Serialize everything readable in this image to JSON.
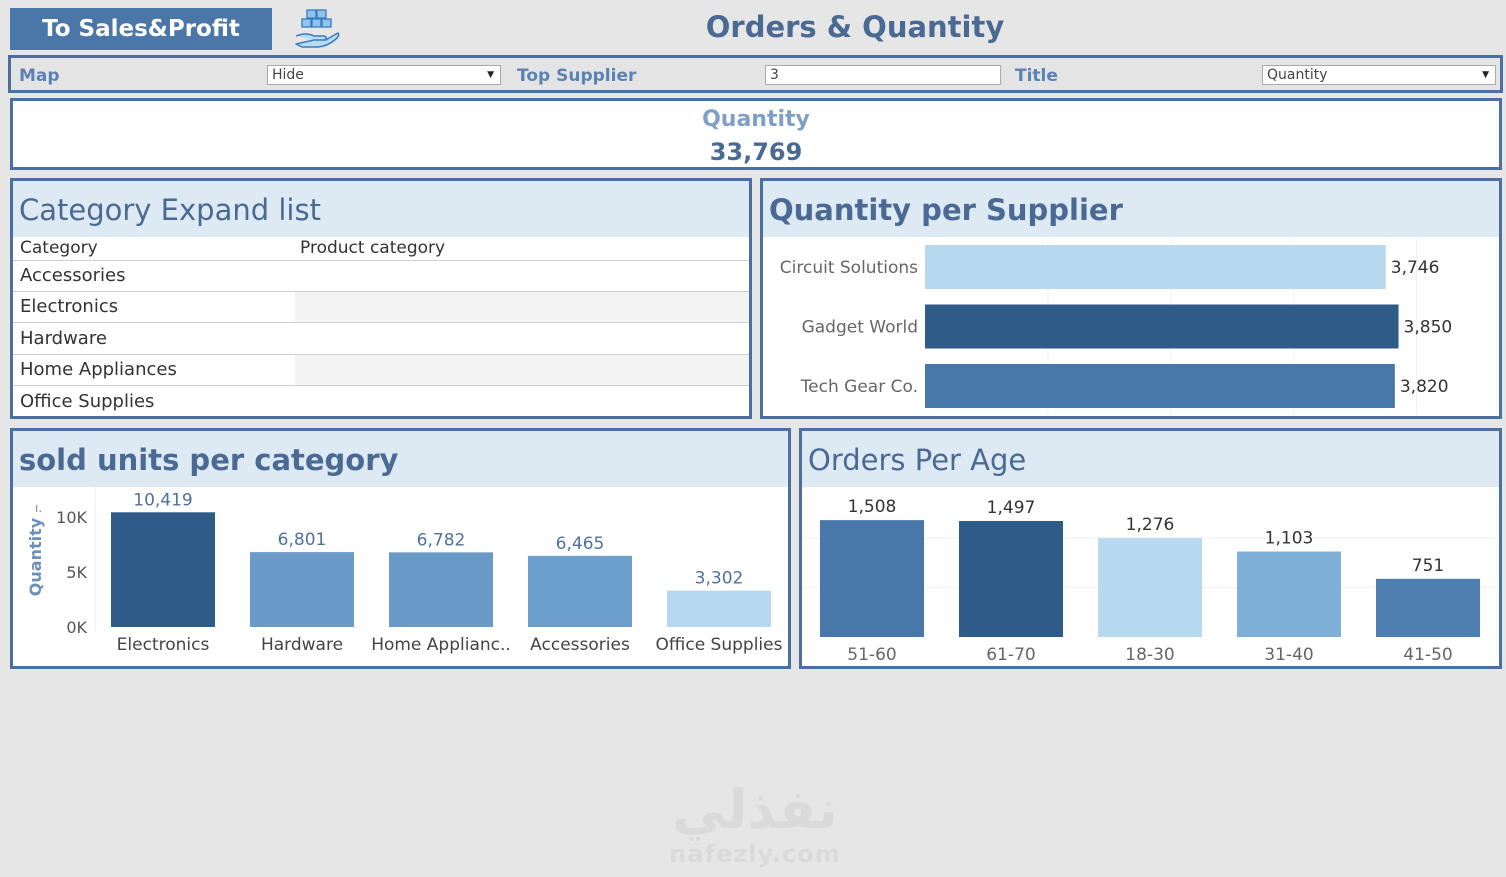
{
  "header": {
    "nav_button": "To Sales&Profit",
    "title": "Orders & Quantity"
  },
  "filters": {
    "map": {
      "label": "Map",
      "value": "Hide"
    },
    "top_supplier": {
      "label": "Top Supplier",
      "value": "3"
    },
    "title": {
      "label": "Title",
      "value": "Quantity"
    }
  },
  "kpi": {
    "label": "Quantity",
    "value": "33,769"
  },
  "category_list": {
    "title": "Category Expand list",
    "columns": [
      "Category",
      "Product category"
    ],
    "rows": [
      "Accessories",
      "Electronics",
      "Hardware",
      "Home Appliances",
      "Office Supplies"
    ]
  },
  "colors": {
    "dark": "#2f5b89",
    "mid": "#4877aa",
    "light_mid": "#6a9ac8",
    "pale": "#7fb0d8",
    "palest": "#b7d9ef",
    "title_text": "#4a6a94"
  },
  "chart_data": [
    {
      "type": "bar",
      "orientation": "horizontal",
      "title": "Quantity per Supplier",
      "categories": [
        "Circuit Solutions",
        "Gadget World",
        "Tech Gear Co."
      ],
      "values": [
        3746,
        3850,
        3820
      ],
      "value_labels": [
        "3,746",
        "3,850",
        "3,820"
      ],
      "xlim": [
        0,
        4000
      ],
      "grid": true,
      "colors": [
        "#b7d9ef",
        "#2f5b89",
        "#4877aa"
      ]
    },
    {
      "type": "bar",
      "title": "sold units per category",
      "ylabel": "Quantity",
      "categories": [
        "Electronics",
        "Hardware",
        "Home Applianc..",
        "Accessories",
        "Office Supplies"
      ],
      "values": [
        10419,
        6801,
        6782,
        6465,
        3302
      ],
      "value_labels": [
        "10,419",
        "6,801",
        "6,782",
        "6,465",
        "3,302"
      ],
      "yticks": [
        "0K",
        "5K",
        "10K"
      ],
      "ylim": [
        0,
        10900
      ],
      "colors": [
        "#2f5b89",
        "#6a9ac8",
        "#6a9ac8",
        "#6d9fcc",
        "#b7d9ef"
      ]
    },
    {
      "type": "bar",
      "title": "Orders Per Age",
      "categories": [
        "51-60",
        "61-70",
        "18-30",
        "31-40",
        "41-50"
      ],
      "values": [
        1508,
        1497,
        1276,
        1103,
        751
      ],
      "value_labels": [
        "1,508",
        "1,497",
        "1,276",
        "1,103",
        "751"
      ],
      "ylim": [
        0,
        1600
      ],
      "colors": [
        "#4877aa",
        "#2f5b89",
        "#b7d9ef",
        "#7fb0d8",
        "#4e7fb0"
      ]
    }
  ],
  "watermark": {
    "arabic": "نفذلي",
    "latin": "nafezly.com"
  }
}
